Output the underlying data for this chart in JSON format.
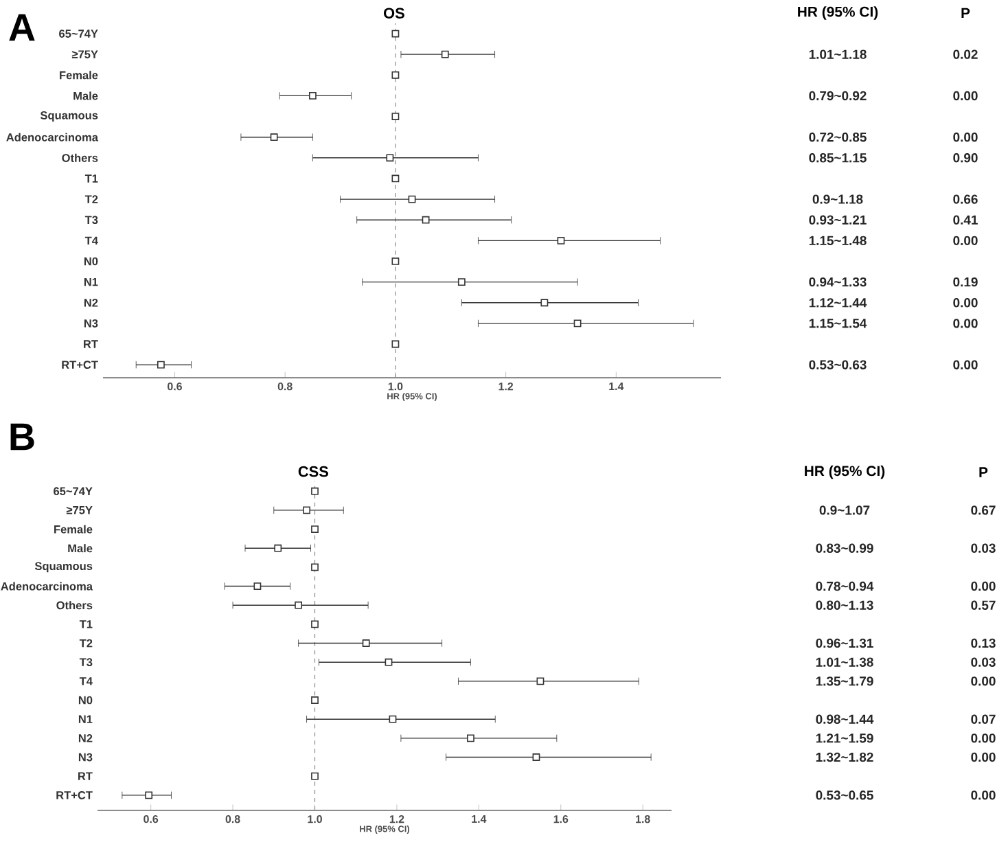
{
  "chart_data": [
    {
      "type": "scatter",
      "orientation": "horizontal",
      "title": "OS",
      "xlabel": "HR (95% CI)",
      "color": "#333333",
      "marker": "square",
      "categories": [
        "65~74Y",
        "≥75Y",
        "Female",
        "Male",
        "Squamous",
        "Adenocarcinoma",
        "Others",
        "T1",
        "T2",
        "T3",
        "T4",
        "N0",
        "N1",
        "N2",
        "N3",
        "RT",
        "RT+CT"
      ],
      "values": [
        1,
        1.09,
        1,
        0.85,
        1,
        0.78,
        0.99,
        1,
        1.03,
        1.055,
        1.3,
        1,
        1.12,
        1.27,
        1.33,
        1,
        0.575
      ],
      "errors": [
        null,
        [
          1.01,
          1.18
        ],
        null,
        [
          0.79,
          0.92
        ],
        null,
        [
          0.72,
          0.85
        ],
        [
          0.85,
          1.15
        ],
        null,
        [
          0.9,
          1.18
        ],
        [
          0.93,
          1.21
        ],
        [
          1.15,
          1.48
        ],
        null,
        [
          0.94,
          1.33
        ],
        [
          1.12,
          1.44
        ],
        [
          1.15,
          1.54
        ],
        null,
        [
          0.53,
          0.63
        ]
      ],
      "value_labels": [
        null,
        "1.01~1.18",
        null,
        "0.79~0.92",
        null,
        "0.72~0.85",
        "0.85~1.15",
        null,
        "0.9~1.18",
        "0.93~1.21",
        "1.15~1.48",
        null,
        "0.94~1.33",
        "1.12~1.44",
        "1.15~1.54",
        null,
        "0.53~0.63"
      ],
      "xlim": [
        0.47,
        1.59
      ],
      "xticks": [
        0.6,
        0.8,
        {
          "value": 1,
          "label": "1.0"
        },
        1.2,
        1.4
      ],
      "ref_lines": [
        {
          "axis": "x",
          "value": 1,
          "color": "#888888",
          "line_style": "dashed"
        }
      ],
      "annotations": [
        "A",
        "HR (95% CI)",
        "P",
        "0.02",
        "0.00",
        "0.00",
        "0.90",
        "0.66",
        "0.41",
        "0.00",
        "0.19",
        "0.00",
        "0.00",
        "0.00"
      ]
    },
    {
      "type": "scatter",
      "orientation": "horizontal",
      "title": "CSS",
      "xlabel": "HR (95% CI)",
      "color": "#333333",
      "marker": "square",
      "categories": [
        "65~74Y",
        "≥75Y",
        "Female",
        "Male",
        "Squamous",
        "Adenocarcinoma",
        "Others",
        "T1",
        "T2",
        "T3",
        "T4",
        "N0",
        "N1",
        "N2",
        "N3",
        "RT",
        "RT+CT"
      ],
      "values": [
        1,
        0.98,
        1,
        0.91,
        1,
        0.86,
        0.96,
        1,
        1.125,
        1.18,
        1.55,
        1,
        1.19,
        1.38,
        1.54,
        1,
        0.595
      ],
      "errors": [
        null,
        [
          0.9,
          1.07
        ],
        null,
        [
          0.83,
          0.99
        ],
        null,
        [
          0.78,
          0.94
        ],
        [
          0.8,
          1.13
        ],
        null,
        [
          0.96,
          1.31
        ],
        [
          1.01,
          1.38
        ],
        [
          1.35,
          1.79
        ],
        null,
        [
          0.98,
          1.44
        ],
        [
          1.21,
          1.59
        ],
        [
          1.32,
          1.82
        ],
        null,
        [
          0.53,
          0.65
        ]
      ],
      "value_labels": [
        null,
        "0.9~1.07",
        null,
        "0.83~0.99",
        null,
        "0.78~0.94",
        "0.80~1.13",
        null,
        "0.96~1.31",
        "1.01~1.38",
        "1.35~1.79",
        null,
        "0.98~1.44",
        "1.21~1.59",
        "1.32~1.82",
        null,
        "0.53~0.65"
      ],
      "xlim": [
        0.47,
        1.87
      ],
      "xticks": [
        0.6,
        0.8,
        {
          "value": 1,
          "label": "1.0"
        },
        1.2,
        1.4,
        1.6,
        1.8
      ],
      "ref_lines": [
        {
          "axis": "x",
          "value": 1,
          "color": "#888888",
          "line_style": "dashed"
        }
      ],
      "annotations": [
        "B",
        "HR (95% CI)",
        "P",
        "0.67",
        "0.03",
        "0.00",
        "0.57",
        "0.13",
        "0.03",
        "0.00",
        "0.07",
        "0.00",
        "0.00",
        "0.00"
      ]
    }
  ]
}
